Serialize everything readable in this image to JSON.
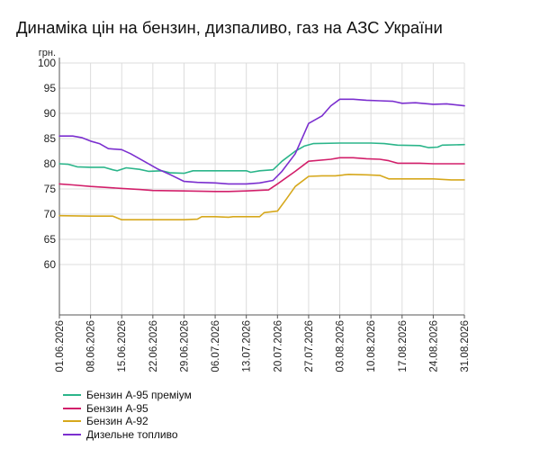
{
  "title": "Динаміка цін на бензин, дизпаливо, газ на АЗС України",
  "chart_data": {
    "type": "line",
    "title": "Динаміка цін на бензин, дизпаливо, газ на АЗС України",
    "ylabel": "грн.",
    "ylim": [
      50,
      100
    ],
    "yticks": [
      100,
      95,
      90,
      85,
      80,
      75,
      70,
      65,
      60
    ],
    "xlim": [
      "2026-06-01",
      "2026-08-31"
    ],
    "xticks": [
      "01.06.2026",
      "08.06.2026",
      "15.06.2026",
      "22.06.2026",
      "29.06.2026",
      "06.07.2026",
      "13.07.2026",
      "20.07.2026",
      "27.07.2026",
      "03.08.2026",
      "10.08.2026",
      "17.08.2026",
      "24.08.2026",
      "31.08.2026"
    ],
    "grid": true,
    "legend_position": "bottom-left",
    "series": [
      {
        "name": "Бензин А-95 преміум",
        "color": "#2bb58a",
        "points": [
          [
            "2026-06-01",
            80.0
          ],
          [
            "2026-06-03",
            79.9
          ],
          [
            "2026-06-05",
            79.4
          ],
          [
            "2026-06-08",
            79.3
          ],
          [
            "2026-06-11",
            79.3
          ],
          [
            "2026-06-13",
            78.8
          ],
          [
            "2026-06-14",
            78.6
          ],
          [
            "2026-06-16",
            79.2
          ],
          [
            "2026-06-19",
            78.9
          ],
          [
            "2026-06-21",
            78.5
          ],
          [
            "2026-06-24",
            78.6
          ],
          [
            "2026-06-26",
            78.2
          ],
          [
            "2026-06-29",
            78.1
          ],
          [
            "2026-07-01",
            78.6
          ],
          [
            "2026-07-06",
            78.6
          ],
          [
            "2026-07-13",
            78.6
          ],
          [
            "2026-07-14",
            78.3
          ],
          [
            "2026-07-16",
            78.6
          ],
          [
            "2026-07-19",
            78.8
          ],
          [
            "2026-07-21",
            80.5
          ],
          [
            "2026-07-24",
            82.5
          ],
          [
            "2026-07-26",
            83.5
          ],
          [
            "2026-07-28",
            84.0
          ],
          [
            "2026-08-03",
            84.1
          ],
          [
            "2026-08-10",
            84.1
          ],
          [
            "2026-08-13",
            84.0
          ],
          [
            "2026-08-16",
            83.7
          ],
          [
            "2026-08-21",
            83.6
          ],
          [
            "2026-08-23",
            83.2
          ],
          [
            "2026-08-25",
            83.3
          ],
          [
            "2026-08-26",
            83.7
          ],
          [
            "2026-08-31",
            83.8
          ]
        ]
      },
      {
        "name": "Бензин А-95",
        "color": "#d21f6a",
        "points": [
          [
            "2026-06-01",
            76.0
          ],
          [
            "2026-06-04",
            75.8
          ],
          [
            "2026-06-08",
            75.5
          ],
          [
            "2026-06-15",
            75.1
          ],
          [
            "2026-06-19",
            74.9
          ],
          [
            "2026-06-22",
            74.7
          ],
          [
            "2026-06-29",
            74.6
          ],
          [
            "2026-07-06",
            74.5
          ],
          [
            "2026-07-09",
            74.5
          ],
          [
            "2026-07-13",
            74.6
          ],
          [
            "2026-07-18",
            74.8
          ],
          [
            "2026-07-20",
            76.0
          ],
          [
            "2026-07-24",
            78.5
          ],
          [
            "2026-07-27",
            80.5
          ],
          [
            "2026-08-01",
            80.9
          ],
          [
            "2026-08-03",
            81.2
          ],
          [
            "2026-08-06",
            81.2
          ],
          [
            "2026-08-09",
            81.0
          ],
          [
            "2026-08-12",
            80.9
          ],
          [
            "2026-08-14",
            80.6
          ],
          [
            "2026-08-16",
            80.1
          ],
          [
            "2026-08-21",
            80.1
          ],
          [
            "2026-08-24",
            80.0
          ],
          [
            "2026-08-31",
            80.0
          ]
        ]
      },
      {
        "name": "Бензин А-92",
        "color": "#d6a81c",
        "points": [
          [
            "2026-06-01",
            69.7
          ],
          [
            "2026-06-08",
            69.6
          ],
          [
            "2026-06-13",
            69.6
          ],
          [
            "2026-06-15",
            68.9
          ],
          [
            "2026-06-22",
            68.9
          ],
          [
            "2026-06-29",
            68.9
          ],
          [
            "2026-07-02",
            69.0
          ],
          [
            "2026-07-03",
            69.5
          ],
          [
            "2026-07-06",
            69.5
          ],
          [
            "2026-07-09",
            69.4
          ],
          [
            "2026-07-10",
            69.5
          ],
          [
            "2026-07-16",
            69.5
          ],
          [
            "2026-07-17",
            70.3
          ],
          [
            "2026-07-20",
            70.6
          ],
          [
            "2026-07-22",
            73.0
          ],
          [
            "2026-07-24",
            75.5
          ],
          [
            "2026-07-27",
            77.5
          ],
          [
            "2026-07-30",
            77.6
          ],
          [
            "2026-08-02",
            77.6
          ],
          [
            "2026-08-05",
            77.9
          ],
          [
            "2026-08-09",
            77.8
          ],
          [
            "2026-08-12",
            77.7
          ],
          [
            "2026-08-14",
            77.0
          ],
          [
            "2026-08-21",
            77.0
          ],
          [
            "2026-08-24",
            77.0
          ],
          [
            "2026-08-28",
            76.8
          ],
          [
            "2026-08-31",
            76.8
          ]
        ]
      },
      {
        "name": "Дизельне топливо",
        "color": "#7b2fcf",
        "points": [
          [
            "2026-06-01",
            85.5
          ],
          [
            "2026-06-04",
            85.5
          ],
          [
            "2026-06-06",
            85.2
          ],
          [
            "2026-06-08",
            84.5
          ],
          [
            "2026-06-10",
            84.0
          ],
          [
            "2026-06-12",
            83.0
          ],
          [
            "2026-06-15",
            82.8
          ],
          [
            "2026-06-17",
            82.0
          ],
          [
            "2026-06-20",
            80.5
          ],
          [
            "2026-06-23",
            79.0
          ],
          [
            "2026-06-26",
            77.8
          ],
          [
            "2026-06-29",
            76.5
          ],
          [
            "2026-07-02",
            76.3
          ],
          [
            "2026-07-06",
            76.2
          ],
          [
            "2026-07-09",
            76.0
          ],
          [
            "2026-07-13",
            76.0
          ],
          [
            "2026-07-16",
            76.2
          ],
          [
            "2026-07-19",
            76.7
          ],
          [
            "2026-07-21",
            78.5
          ],
          [
            "2026-07-24",
            82.0
          ],
          [
            "2026-07-26",
            86.0
          ],
          [
            "2026-07-27",
            88.0
          ],
          [
            "2026-07-30",
            89.5
          ],
          [
            "2026-08-01",
            91.5
          ],
          [
            "2026-08-03",
            92.8
          ],
          [
            "2026-08-06",
            92.8
          ],
          [
            "2026-08-09",
            92.6
          ],
          [
            "2026-08-12",
            92.5
          ],
          [
            "2026-08-15",
            92.4
          ],
          [
            "2026-08-17",
            92.0
          ],
          [
            "2026-08-20",
            92.1
          ],
          [
            "2026-08-24",
            91.8
          ],
          [
            "2026-08-27",
            91.9
          ],
          [
            "2026-08-31",
            91.5
          ]
        ]
      }
    ]
  }
}
